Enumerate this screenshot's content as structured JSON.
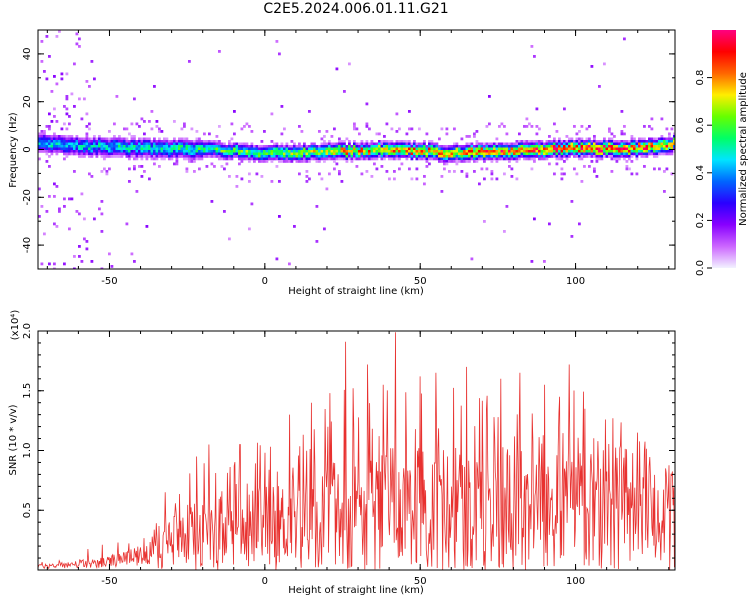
{
  "figure": {
    "title": "C2E5.2024.006.01.11.G21"
  },
  "colors": {
    "snr_line": "#e8312f",
    "colormap": [
      "#f2f2ff",
      "#cc66ff",
      "#8800ff",
      "#2a00ff",
      "#0066ff",
      "#00e5ff",
      "#00ff66",
      "#66ff00",
      "#ffee00",
      "#ff6600",
      "#ff0000",
      "#ff0080"
    ]
  },
  "chart_data": [
    {
      "type": "heatmap",
      "name": "spectrogram",
      "xlabel": "Height of straight line (km)",
      "ylabel": "Frequency (Hz)",
      "xlim": [
        -73,
        132
      ],
      "ylim": [
        -50,
        50
      ],
      "xticks": [
        -50,
        0,
        50,
        100
      ],
      "yticks": [
        -40,
        -20,
        0,
        20,
        40
      ],
      "colorbar": {
        "label": "Normalized spectral amplitude",
        "range": [
          0.0,
          1.0
        ],
        "ticks": [
          "0.0",
          "0.2",
          "0.4",
          "0.6",
          "0.8"
        ]
      },
      "ridge_center": [
        [
          -73,
          3
        ],
        [
          -60,
          2
        ],
        [
          -40,
          1
        ],
        [
          -20,
          0.5
        ],
        [
          0,
          -1
        ],
        [
          20,
          -0.5
        ],
        [
          40,
          0.5
        ],
        [
          60,
          -1
        ],
        [
          80,
          0
        ],
        [
          100,
          1
        ],
        [
          120,
          1
        ],
        [
          132,
          3
        ]
      ],
      "ridge_peak_amplitude": [
        [
          -73,
          0.45
        ],
        [
          -50,
          0.45
        ],
        [
          -30,
          0.5
        ],
        [
          0,
          0.6
        ],
        [
          30,
          0.75
        ],
        [
          60,
          0.8
        ],
        [
          90,
          0.85
        ],
        [
          110,
          0.9
        ],
        [
          132,
          0.8
        ]
      ]
    },
    {
      "type": "line",
      "name": "snr",
      "xlabel": "Height of straight line (km)",
      "ylabel": "SNR (10 * v/v)",
      "y_scale_label": "(x10⁴)",
      "xlim": [
        -73,
        132
      ],
      "ylim": [
        0,
        2.0
      ],
      "xticks": [
        -50,
        0,
        50,
        100
      ],
      "yticks": [
        "0.5",
        "1.0",
        "1.5",
        "2.0"
      ],
      "series": [
        {
          "envelope_x": [
            -73,
            -60,
            -50,
            -40,
            -36,
            -34,
            -30,
            -20,
            -10,
            0,
            10,
            20,
            30,
            40,
            50,
            60,
            70,
            80,
            90,
            100,
            110,
            120,
            132
          ],
          "envelope_mean": [
            0.03,
            0.05,
            0.07,
            0.12,
            0.18,
            0.28,
            0.3,
            0.35,
            0.4,
            0.42,
            0.45,
            0.5,
            0.55,
            0.6,
            0.6,
            0.62,
            0.6,
            0.62,
            0.65,
            0.7,
            0.65,
            0.6,
            0.6
          ],
          "envelope_peak": [
            0.06,
            0.15,
            0.25,
            0.35,
            0.4,
            0.75,
            0.7,
            1.0,
            1.05,
            1.2,
            1.35,
            1.5,
            1.9,
            2.0,
            1.6,
            1.7,
            1.75,
            1.6,
            1.5,
            1.7,
            1.4,
            1.2,
            0.9
          ],
          "peaks": [
            [
              -32,
              0.65
            ],
            [
              -22,
              0.95
            ],
            [
              -18,
              1.05
            ],
            [
              -8,
              1.05
            ],
            [
              8,
              1.3
            ],
            [
              15,
              1.4
            ],
            [
              21,
              1.48
            ],
            [
              26,
              1.91
            ],
            [
              33,
              1.72
            ],
            [
              38,
              1.55
            ],
            [
              42,
              1.99
            ],
            [
              50,
              1.62
            ],
            [
              55,
              1.65
            ],
            [
              65,
              1.7
            ],
            [
              76,
              1.6
            ],
            [
              82,
              1.65
            ],
            [
              90,
              1.55
            ],
            [
              98,
              1.72
            ],
            [
              103,
              1.35
            ],
            [
              112,
              1.27
            ],
            [
              120,
              1.15
            ],
            [
              129,
              0.85
            ]
          ]
        }
      ]
    }
  ]
}
